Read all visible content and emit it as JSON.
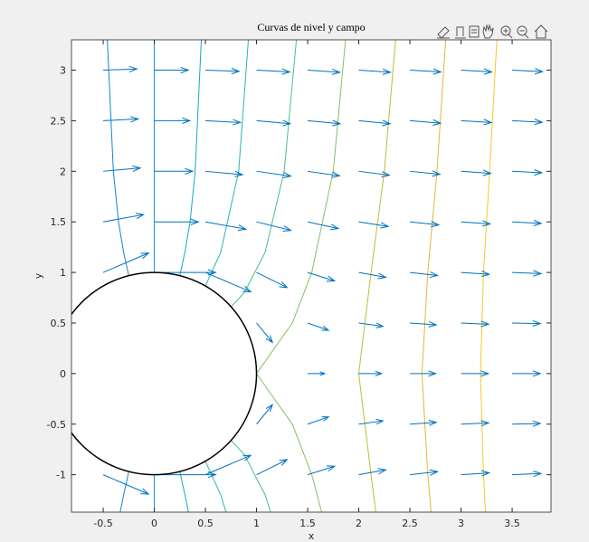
{
  "chart_data": {
    "type": "quiver",
    "title": "Curvas de nivel y campo",
    "xlabel": "x",
    "ylabel": "y",
    "xlim": [
      -0.81,
      3.88
    ],
    "ylim": [
      -1.37,
      3.3
    ],
    "xticks": [
      -0.5,
      0,
      0.5,
      1,
      1.5,
      2,
      2.5,
      3,
      3.5
    ],
    "yticks": [
      -1,
      -0.5,
      0,
      0.5,
      1,
      1.5,
      2,
      2.5,
      3
    ],
    "circle": {
      "cx": 0,
      "cy": 0,
      "r": 1,
      "color": "#000000"
    },
    "quiver": {
      "color": "#0072bd",
      "x": [
        -0.5,
        0,
        0.5,
        1,
        1.5,
        2,
        2.5,
        3,
        3.5
      ],
      "y": [
        -1,
        -0.5,
        0,
        0.5,
        1,
        1.5,
        2,
        2.5,
        3
      ],
      "u": [
        [
          1.48,
          2,
          1.48,
          1,
          0.88,
          0.88,
          0.9,
          0.92,
          0.94
        ],
        [
          null,
          null,
          null,
          0.52,
          0.68,
          0.79,
          0.86,
          0.9,
          0.92
        ],
        [
          null,
          null,
          null,
          0,
          0.56,
          0.75,
          0.84,
          0.89,
          0.92
        ],
        [
          null,
          null,
          null,
          0.52,
          0.68,
          0.79,
          0.86,
          0.9,
          0.92
        ],
        [
          1.48,
          2,
          1.48,
          1,
          0.88,
          0.88,
          0.9,
          0.92,
          0.94
        ],
        [
          1.32,
          1.44,
          1.32,
          1.12,
          1,
          0.96,
          0.94,
          0.95,
          0.95
        ],
        [
          1.21,
          1.25,
          1.21,
          1.12,
          1.04,
          1,
          0.98,
          0.97,
          0.97
        ],
        [
          1.14,
          1.16,
          1.14,
          1.1,
          1.06,
          1.02,
          1,
          0.99,
          0.98
        ],
        [
          1.1,
          1.11,
          1.1,
          1.08,
          1.05,
          1.03,
          1.01,
          1,
          0.99
        ]
      ],
      "v": [
        [
          -0.64,
          0,
          0.64,
          0.5,
          0.28,
          0.16,
          0.1,
          0.06,
          0.04
        ],
        [
          null,
          null,
          null,
          0.64,
          0.24,
          0.11,
          0.06,
          0.04,
          0.02
        ],
        [
          null,
          null,
          null,
          0,
          0,
          0,
          0,
          0,
          0
        ],
        [
          null,
          null,
          null,
          -0.64,
          -0.24,
          -0.11,
          -0.06,
          -0.04,
          -0.02
        ],
        [
          0.64,
          0,
          -0.64,
          -0.5,
          -0.28,
          -0.16,
          -0.1,
          -0.06,
          -0.04
        ],
        [
          0.24,
          0,
          -0.24,
          -0.28,
          -0.22,
          -0.15,
          -0.1,
          -0.07,
          -0.05
        ],
        [
          0.11,
          0,
          -0.11,
          -0.16,
          -0.15,
          -0.13,
          -0.1,
          -0.07,
          -0.05
        ],
        [
          0.06,
          0,
          -0.06,
          -0.1,
          -0.1,
          -0.1,
          -0.08,
          -0.06,
          -0.05
        ],
        [
          0.04,
          0,
          -0.04,
          -0.06,
          -0.07,
          -0.07,
          -0.06,
          -0.06,
          -0.05
        ]
      ]
    },
    "contours": [
      {
        "color": "#0d88d0",
        "x": [
          -0.46,
          -0.4,
          -0.35,
          -0.3,
          -0.25,
          null,
          -0.25,
          -0.3,
          -0.34
        ],
        "y": [
          3.3,
          2,
          1.5,
          1.2,
          0.97,
          null,
          -0.97,
          -1.2,
          -1.4
        ]
      },
      {
        "color": "#1499cf",
        "x": [
          0,
          0,
          null,
          0,
          0
        ],
        "y": [
          3.3,
          1,
          null,
          -1,
          -1.4
        ]
      },
      {
        "color": "#13a8c7",
        "x": [
          0.46,
          0.4,
          0.35,
          0.3,
          0.25,
          null,
          0.25,
          0.3,
          0.34
        ],
        "y": [
          3.3,
          2,
          1.5,
          1.2,
          0.97,
          null,
          -0.97,
          -1.2,
          -1.4
        ]
      },
      {
        "color": "#25b6b0",
        "x": [
          0.92,
          0.825,
          0.65,
          0.5,
          null,
          0.5,
          0.65,
          0.71
        ],
        "y": [
          3.3,
          2,
          1.2,
          0.866,
          null,
          -0.866,
          -1.2,
          -1.4
        ]
      },
      {
        "color": "#4dbd8f",
        "x": [
          1.39,
          1.27,
          1.085,
          0.88,
          0.75,
          null,
          0.75,
          0.88,
          1.085,
          1.146
        ],
        "y": [
          3.3,
          2,
          1.2,
          0.8,
          0.66,
          null,
          -0.66,
          -0.8,
          -1.2,
          -1.4
        ]
      },
      {
        "color": "#85c064",
        "x": [
          1.87,
          1.75,
          1.54,
          1.35,
          1,
          1.35,
          1.54,
          1.645
        ],
        "y": [
          3.3,
          2,
          1,
          0.5,
          0,
          -0.5,
          -1,
          -1.4
        ]
      },
      {
        "color": "#bdbd3a",
        "x": [
          2.36,
          2.25,
          2.12,
          2,
          2.12,
          2.17
        ],
        "y": [
          3.3,
          2,
          1,
          0,
          -1,
          -1.4
        ]
      },
      {
        "color": "#e6b533",
        "x": [
          2.85,
          2.765,
          2.675,
          2.618,
          2.675,
          2.71
        ],
        "y": [
          3.3,
          2,
          1,
          0,
          -1,
          -1.4
        ]
      },
      {
        "color": "#f9c52b",
        "x": [
          3.35,
          3.28,
          3.22,
          3.19,
          3.22,
          3.24
        ],
        "y": [
          3.3,
          2,
          1,
          0,
          -1,
          -1.4
        ]
      }
    ]
  }
}
